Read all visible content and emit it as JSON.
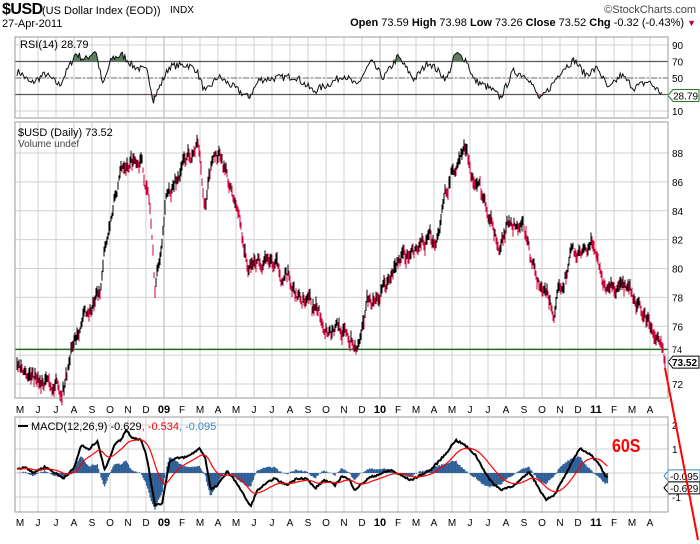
{
  "header": {
    "symbol": "$USD",
    "name": "(US Dollar Index (EOD))",
    "exchange": "INDX",
    "brand": "©StockCharts.com",
    "date": "27-Apr-2011",
    "open_label": "Open",
    "open": "73.59",
    "high_label": "High",
    "high": "73.98",
    "low_label": "Low",
    "low": "73.26",
    "close_label": "Close",
    "close": "73.52",
    "chg_label": "Chg",
    "chg": "-0.32 (-0.43%)",
    "chg_arrow": "▼"
  },
  "colors": {
    "up": "#000000",
    "down": "#d0003a",
    "macd": "#000000",
    "signal": "#ff0000",
    "hist": "#2f5f96",
    "support": "#1a6b1a",
    "annot": "#ff0000",
    "grid": "#d0d0d0"
  },
  "chart_data": [
    {
      "type": "line",
      "title": "RSI(14) 28.79",
      "legend": "RSI(14) 28.79",
      "ylim": [
        0,
        100
      ],
      "ticks": [
        "90",
        "70",
        "50",
        "10"
      ],
      "last_value_label": "28.79",
      "levels": [
        70,
        50,
        30
      ],
      "x_unit": "months since May 2008",
      "points": [
        [
          0,
          57
        ],
        [
          0.6,
          43
        ],
        [
          1.4,
          55
        ],
        [
          2.2,
          41
        ],
        [
          3.1,
          80
        ],
        [
          3.6,
          72
        ],
        [
          4.2,
          84
        ],
        [
          4.6,
          41
        ],
        [
          5.1,
          74
        ],
        [
          5.7,
          78
        ],
        [
          6.3,
          64
        ],
        [
          7.1,
          58
        ],
        [
          7.4,
          23
        ],
        [
          8.3,
          64
        ],
        [
          9.3,
          66
        ],
        [
          9.8,
          60
        ],
        [
          10.3,
          32
        ],
        [
          11.0,
          52
        ],
        [
          11.8,
          40
        ],
        [
          12.7,
          26
        ],
        [
          13.3,
          48
        ],
        [
          14.3,
          50
        ],
        [
          15.3,
          52
        ],
        [
          16.3,
          34
        ],
        [
          17.2,
          43
        ],
        [
          18.0,
          54
        ],
        [
          18.7,
          40
        ],
        [
          19.5,
          70
        ],
        [
          20.2,
          50
        ],
        [
          21.0,
          76
        ],
        [
          21.9,
          48
        ],
        [
          22.7,
          70
        ],
        [
          23.7,
          48
        ],
        [
          24.2,
          80
        ],
        [
          24.8,
          72
        ],
        [
          25.2,
          48
        ],
        [
          26.2,
          36
        ],
        [
          26.7,
          26
        ],
        [
          27.4,
          58
        ],
        [
          28.2,
          52
        ],
        [
          28.9,
          23
        ],
        [
          29.6,
          43
        ],
        [
          30.1,
          60
        ],
        [
          30.8,
          72
        ],
        [
          31.4,
          54
        ],
        [
          32.1,
          62
        ],
        [
          32.7,
          36
        ],
        [
          33.4,
          54
        ],
        [
          34.1,
          38
        ],
        [
          34.9,
          46
        ],
        [
          35.5,
          34
        ],
        [
          35.85,
          28.79
        ]
      ]
    },
    {
      "type": "ohlc",
      "title": "$USD (Daily) 73.52",
      "legend": "$USD (Daily) 73.52",
      "volume_legend": "Volume undef",
      "ylim": [
        71,
        90
      ],
      "ticks": [
        "88",
        "86",
        "84",
        "82",
        "80",
        "78",
        "76",
        "74",
        "72"
      ],
      "last_value_label": "73.52",
      "support_level": 74.4,
      "x_unit": "months since May 2008",
      "points": [
        [
          0,
          73.3
        ],
        [
          1.1,
          72.6
        ],
        [
          2.3,
          71.6
        ],
        [
          3.3,
          76.4
        ],
        [
          4.4,
          77.8
        ],
        [
          5.0,
          83.4
        ],
        [
          5.8,
          87.5
        ],
        [
          6.7,
          87.9
        ],
        [
          7.2,
          84.7
        ],
        [
          7.5,
          78.5
        ],
        [
          8.1,
          84.7
        ],
        [
          9.2,
          87.5
        ],
        [
          9.9,
          88.9
        ],
        [
          10.3,
          84.1
        ],
        [
          10.8,
          88.2
        ],
        [
          11.4,
          86.5
        ],
        [
          12.2,
          83.4
        ],
        [
          12.7,
          79.9
        ],
        [
          13.3,
          80.9
        ],
        [
          14.2,
          80.2
        ],
        [
          15.0,
          78.9
        ],
        [
          16.1,
          77.1
        ],
        [
          17.2,
          76.1
        ],
        [
          18.1,
          75.7
        ],
        [
          18.9,
          74.7
        ],
        [
          19.4,
          77.8
        ],
        [
          20.3,
          78.5
        ],
        [
          21.1,
          80.6
        ],
        [
          22.2,
          80.9
        ],
        [
          23.1,
          82.0
        ],
        [
          23.9,
          86.5
        ],
        [
          24.7,
          88.2
        ],
        [
          25.3,
          85.8
        ],
        [
          26.1,
          84.1
        ],
        [
          26.7,
          81.3
        ],
        [
          27.3,
          83.7
        ],
        [
          28.1,
          82.7
        ],
        [
          28.9,
          78.5
        ],
        [
          29.7,
          76.8
        ],
        [
          30.6,
          81.3
        ],
        [
          31.4,
          80.6
        ],
        [
          31.9,
          81.6
        ],
        [
          32.5,
          78.9
        ],
        [
          33.3,
          78.9
        ],
        [
          34.2,
          77.1
        ],
        [
          35.0,
          76.1
        ],
        [
          35.6,
          74.0
        ],
        [
          35.85,
          73.52
        ]
      ]
    },
    {
      "type": "line",
      "title": "MACD(12,26,9)",
      "legend_main": "MACD(12,26,9) -0.629",
      "legend_signal": ", -0.534",
      "legend_hist": ", -0.095",
      "ylim": [
        -1.6,
        2.2
      ],
      "ticks": [
        "2",
        "1",
        "-1"
      ],
      "hist_label": "-0.095",
      "macd_label": "-0.629",
      "x_unit": "months since May 2008",
      "macd_points": [
        [
          0,
          0.19
        ],
        [
          0.3,
          0.26
        ],
        [
          0.7,
          0
        ],
        [
          1.4,
          0.26
        ],
        [
          2.4,
          -0.22
        ],
        [
          3.0,
          0.19
        ],
        [
          3.4,
          1.17
        ],
        [
          3.8,
          0.96
        ],
        [
          4.3,
          1.35
        ],
        [
          4.7,
          0.12
        ],
        [
          5.3,
          1.24
        ],
        [
          5.6,
          1.38
        ],
        [
          5.9,
          1.8
        ],
        [
          6.2,
          1.5
        ],
        [
          6.7,
          1.38
        ],
        [
          7.0,
          0.82
        ],
        [
          7.5,
          -1.33
        ],
        [
          7.9,
          -1.26
        ],
        [
          8.3,
          0.47
        ],
        [
          8.7,
          0.61
        ],
        [
          9.3,
          0.68
        ],
        [
          10.0,
          1.03
        ],
        [
          10.3,
          0.61
        ],
        [
          10.6,
          -0.71
        ],
        [
          11.0,
          -0.5
        ],
        [
          11.5,
          0.06
        ],
        [
          12.0,
          -0.36
        ],
        [
          12.8,
          -1.4
        ],
        [
          13.2,
          -0.71
        ],
        [
          14.1,
          -0.22
        ],
        [
          14.8,
          -0.5
        ],
        [
          15.4,
          -0.22
        ],
        [
          15.9,
          -0.22
        ],
        [
          16.4,
          -0.64
        ],
        [
          16.9,
          -0.29
        ],
        [
          17.5,
          -0.5
        ],
        [
          17.9,
          -0.12
        ],
        [
          18.3,
          -0.29
        ],
        [
          18.6,
          -0.7
        ],
        [
          19.4,
          -0.2
        ],
        [
          20.6,
          0.12
        ],
        [
          21.7,
          -0.3
        ],
        [
          22.8,
          0.12
        ],
        [
          23.6,
          0.75
        ],
        [
          24.2,
          1.37
        ],
        [
          24.7,
          1.17
        ],
        [
          25.3,
          0.75
        ],
        [
          26.1,
          -0.3
        ],
        [
          26.7,
          -0.7
        ],
        [
          27.5,
          -0.5
        ],
        [
          28.3,
          0.04
        ],
        [
          29.2,
          -1.1
        ],
        [
          29.7,
          -0.9
        ],
        [
          30.6,
          0.33
        ],
        [
          31.1,
          1.04
        ],
        [
          31.7,
          0.75
        ],
        [
          32.1,
          0.46
        ],
        [
          32.5,
          -0.08
        ],
        [
          32.7,
          -0.3
        ]
      ]
    }
  ],
  "x_axis": {
    "months": [
      "M",
      "J",
      "J",
      "A",
      "S",
      "O",
      "N",
      "D",
      "09",
      "F",
      "M",
      "A",
      "M",
      "J",
      "J",
      "A",
      "S",
      "O",
      "N",
      "D",
      "10",
      "F",
      "M",
      "A",
      "M",
      "J",
      "J",
      "A",
      "S",
      "O",
      "N",
      "D",
      "11",
      "F",
      "M",
      "A"
    ]
  },
  "annotation": {
    "text": "60S"
  }
}
